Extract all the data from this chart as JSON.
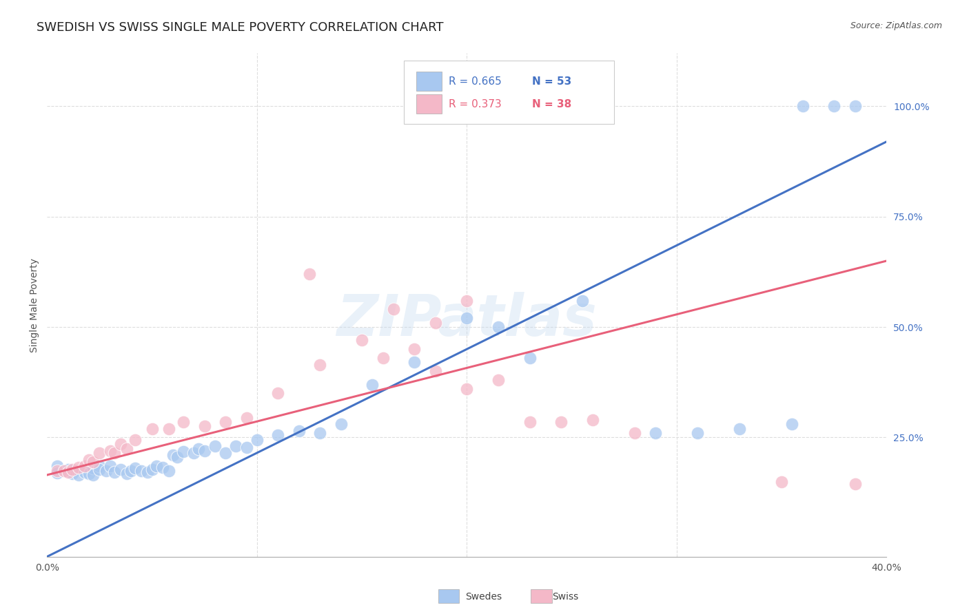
{
  "title": "SWEDISH VS SWISS SINGLE MALE POVERTY CORRELATION CHART",
  "source": "Source: ZipAtlas.com",
  "ylabel": "Single Male Poverty",
  "xlim": [
    0.0,
    0.4
  ],
  "ylim": [
    -0.02,
    1.12
  ],
  "ytick_labels_right": [
    "100.0%",
    "75.0%",
    "50.0%",
    "25.0%"
  ],
  "ytick_values_right": [
    1.0,
    0.75,
    0.5,
    0.25
  ],
  "blue_color": "#A8C8F0",
  "pink_color": "#F4B8C8",
  "blue_line_color": "#4472C4",
  "pink_line_color": "#E8607A",
  "blue_scatter_x": [
    0.005,
    0.005,
    0.008,
    0.01,
    0.012,
    0.015,
    0.018,
    0.02,
    0.022,
    0.022,
    0.025,
    0.025,
    0.028,
    0.03,
    0.032,
    0.035,
    0.038,
    0.04,
    0.042,
    0.045,
    0.048,
    0.05,
    0.052,
    0.055,
    0.058,
    0.06,
    0.062,
    0.065,
    0.07,
    0.072,
    0.075,
    0.08,
    0.085,
    0.09,
    0.095,
    0.1,
    0.11,
    0.12,
    0.13,
    0.14,
    0.155,
    0.175,
    0.2,
    0.215,
    0.23,
    0.255,
    0.29,
    0.31,
    0.33,
    0.355,
    0.36,
    0.375,
    0.385
  ],
  "blue_scatter_y": [
    0.185,
    0.17,
    0.175,
    0.178,
    0.168,
    0.165,
    0.172,
    0.168,
    0.18,
    0.165,
    0.185,
    0.178,
    0.175,
    0.185,
    0.172,
    0.178,
    0.168,
    0.175,
    0.18,
    0.175,
    0.172,
    0.178,
    0.185,
    0.182,
    0.175,
    0.21,
    0.205,
    0.218,
    0.215,
    0.225,
    0.22,
    0.23,
    0.215,
    0.23,
    0.228,
    0.245,
    0.255,
    0.265,
    0.26,
    0.28,
    0.37,
    0.42,
    0.52,
    0.5,
    0.43,
    0.56,
    0.26,
    0.26,
    0.27,
    0.28,
    1.0,
    1.0,
    1.0
  ],
  "pink_scatter_x": [
    0.005,
    0.008,
    0.01,
    0.012,
    0.015,
    0.018,
    0.02,
    0.022,
    0.025,
    0.03,
    0.032,
    0.035,
    0.038,
    0.042,
    0.05,
    0.058,
    0.065,
    0.075,
    0.085,
    0.095,
    0.11,
    0.13,
    0.15,
    0.16,
    0.175,
    0.185,
    0.2,
    0.215,
    0.23,
    0.245,
    0.26,
    0.28,
    0.125,
    0.165,
    0.185,
    0.2,
    0.35,
    0.385
  ],
  "pink_scatter_y": [
    0.175,
    0.175,
    0.172,
    0.178,
    0.182,
    0.185,
    0.2,
    0.195,
    0.215,
    0.22,
    0.215,
    0.235,
    0.225,
    0.245,
    0.27,
    0.27,
    0.285,
    0.275,
    0.285,
    0.295,
    0.35,
    0.415,
    0.47,
    0.43,
    0.45,
    0.4,
    0.36,
    0.38,
    0.285,
    0.285,
    0.29,
    0.26,
    0.62,
    0.54,
    0.51,
    0.56,
    0.15,
    0.145
  ],
  "blue_line_x": [
    0.0,
    0.4
  ],
  "blue_line_y": [
    -0.02,
    0.92
  ],
  "pink_line_x": [
    0.0,
    0.4
  ],
  "pink_line_y": [
    0.165,
    0.65
  ],
  "background_color": "#FFFFFF",
  "grid_color": "#DDDDDD",
  "title_fontsize": 13,
  "axis_label_fontsize": 10
}
